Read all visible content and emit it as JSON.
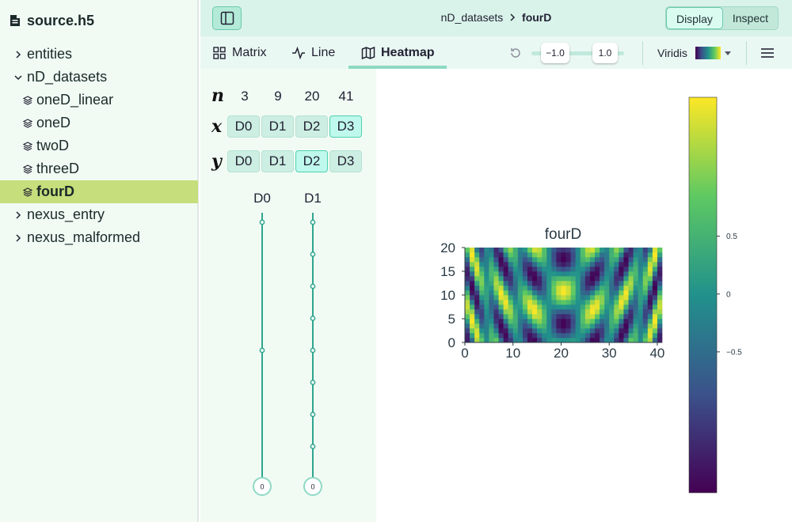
{
  "sidebar": {
    "file_name": "source.h5",
    "items": [
      {
        "label": "entities",
        "kind": "group",
        "expanded": false,
        "depth": 0
      },
      {
        "label": "nD_datasets",
        "kind": "group",
        "expanded": true,
        "depth": 0
      },
      {
        "label": "oneD_linear",
        "kind": "dataset",
        "depth": 1
      },
      {
        "label": "oneD",
        "kind": "dataset",
        "depth": 1
      },
      {
        "label": "twoD",
        "kind": "dataset",
        "depth": 1
      },
      {
        "label": "threeD",
        "kind": "dataset",
        "depth": 1
      },
      {
        "label": "fourD",
        "kind": "dataset",
        "depth": 1,
        "selected": true
      },
      {
        "label": "nexus_entry",
        "kind": "group",
        "expanded": false,
        "depth": 0
      },
      {
        "label": "nexus_malformed",
        "kind": "group",
        "expanded": false,
        "depth": 0
      }
    ]
  },
  "topbar": {
    "breadcrumb_parent": "nD_datasets",
    "breadcrumb_current": "fourD",
    "mode_display": "Display",
    "mode_inspect": "Inspect",
    "active_mode": "Display"
  },
  "toolbar": {
    "tabs": [
      {
        "label": "Matrix",
        "icon": "grid-icon"
      },
      {
        "label": "Line",
        "icon": "line-chart-icon"
      },
      {
        "label": "Heatmap",
        "icon": "map-icon",
        "active": true
      }
    ],
    "domain_min": "−1.0",
    "domain_max": "1.0",
    "colormap_label": "Viridis"
  },
  "mapper": {
    "n_label": "n",
    "x_label": "x",
    "y_label": "y",
    "dims": [
      "D0",
      "D1",
      "D2",
      "D3"
    ],
    "sizes": [
      "3",
      "9",
      "20",
      "41"
    ],
    "x_selected": "D3",
    "y_selected": "D2",
    "slicers": [
      {
        "label": "D0",
        "value": "0",
        "size": 3
      },
      {
        "label": "D1",
        "value": "0",
        "size": 9
      }
    ]
  },
  "colors": {
    "accent": "#4ed1b0",
    "selected_row": "#c6de7b",
    "sidebar_bg": "#f1fbf4"
  },
  "chart_data": {
    "type": "heatmap",
    "title": "fourD",
    "xlim": [
      0,
      41
    ],
    "ylim": [
      0,
      20
    ],
    "x_ticks": [
      0,
      10,
      20,
      30,
      40
    ],
    "y_ticks": [
      0,
      5,
      10,
      15,
      20
    ],
    "shape": [
      20,
      41
    ],
    "colormap": "viridis",
    "domain": [
      -1.0,
      1.0
    ],
    "colorbar_ticks": [
      "0.5",
      "0",
      "−0.5"
    ],
    "colorbar_tick_values": [
      0.5,
      0,
      -0.5
    ]
  }
}
